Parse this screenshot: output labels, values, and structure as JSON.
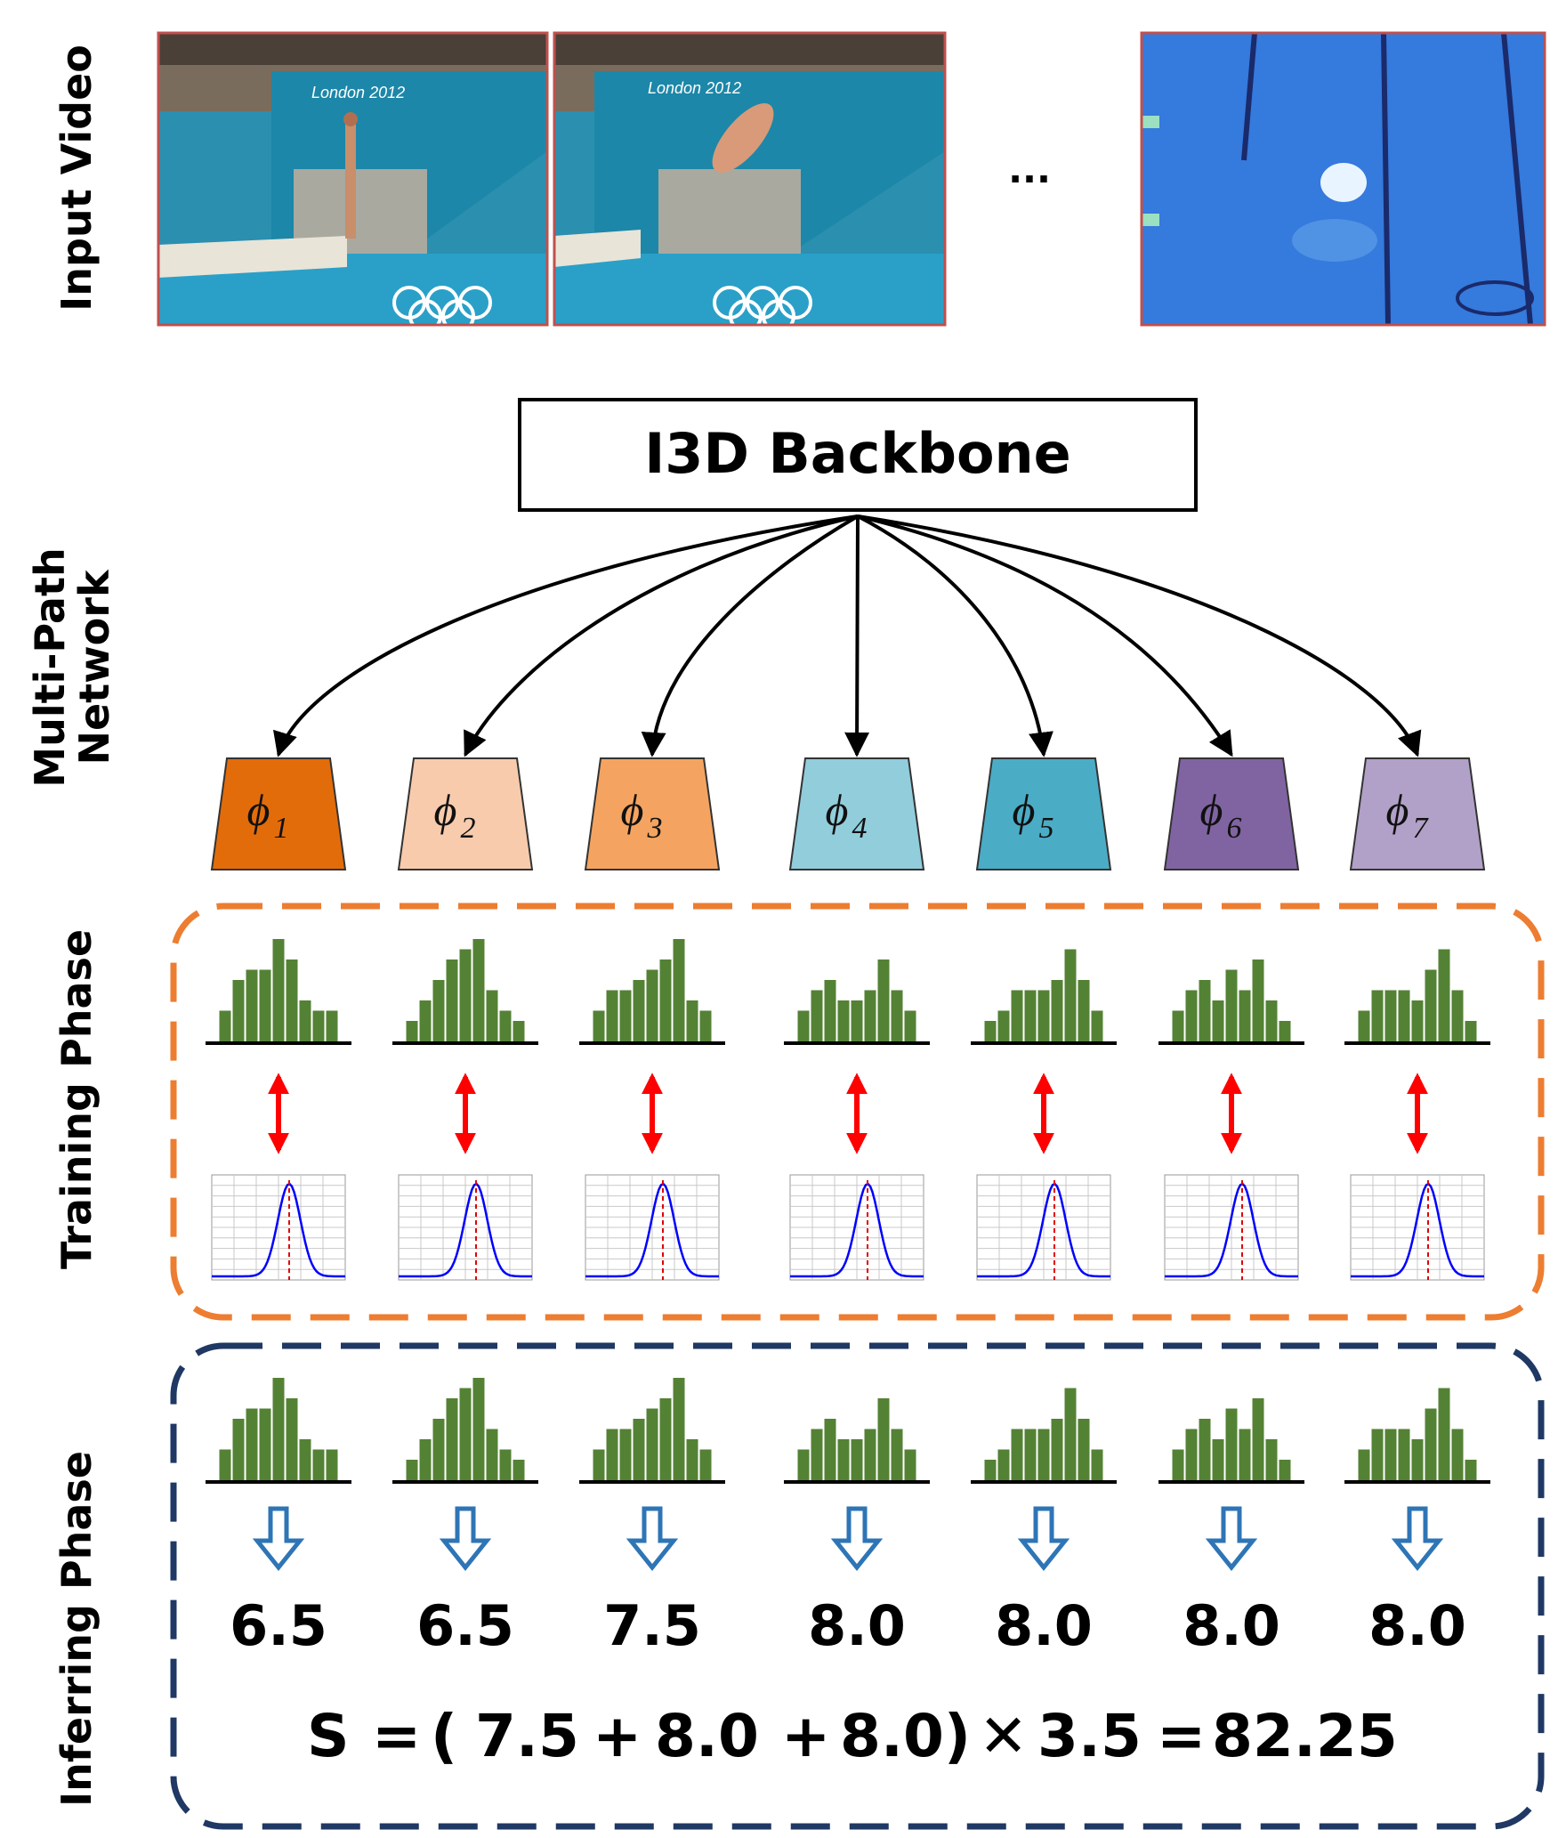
{
  "row_labels": {
    "input_video": "Input Video",
    "multi_path_line1": "Multi-Path",
    "multi_path_line2": "Network",
    "training": "Training Phase",
    "inferring": "Inferring Phase"
  },
  "backbone": {
    "label": "I3D Backbone"
  },
  "ellipsis": "...",
  "frames": [
    {
      "name": "diving-frame-platform",
      "scene": "Athlete standing on diving platform, London 2012 banner"
    },
    {
      "name": "diving-frame-midair",
      "scene": "Athlete in mid-air dive, London 2012 banner"
    },
    {
      "name": "diving-frame-splash",
      "scene": "Splash entering blue pool water"
    }
  ],
  "colors": {
    "frame_border": "#c0504d",
    "histogram_bar": "#548235",
    "red_arrow": "#ff0000",
    "blue_arrow": "#2e75b6",
    "gaussian_curve": "#0000ff",
    "training_border": "#ed7d31",
    "inferring_border": "#1f3864"
  },
  "paths": [
    {
      "symbol": "ϕ",
      "sub": "1",
      "color": "#e36c0a",
      "hist": [
        3,
        6,
        7,
        7,
        10,
        8,
        4,
        3,
        3
      ],
      "score": "6.5"
    },
    {
      "symbol": "ϕ",
      "sub": "2",
      "color": "#f8cbad",
      "hist": [
        2,
        4,
        6,
        8,
        9,
        10,
        5,
        3,
        2
      ],
      "score": "6.5"
    },
    {
      "symbol": "ϕ",
      "sub": "3",
      "color": "#f4a460",
      "hist": [
        3,
        5,
        5,
        6,
        7,
        8,
        10,
        4,
        3
      ],
      "score": "7.5"
    },
    {
      "symbol": "ϕ",
      "sub": "4",
      "color": "#92cddc",
      "hist": [
        3,
        5,
        6,
        4,
        4,
        5,
        8,
        5,
        3
      ],
      "score": "8.0"
    },
    {
      "symbol": "ϕ",
      "sub": "5",
      "color": "#4bacc6",
      "hist": [
        2,
        3,
        5,
        5,
        5,
        6,
        9,
        6,
        3
      ],
      "score": "8.0"
    },
    {
      "symbol": "ϕ",
      "sub": "6",
      "color": "#8064a2",
      "hist": [
        3,
        5,
        6,
        4,
        7,
        5,
        8,
        4,
        2
      ],
      "score": "8.0"
    },
    {
      "symbol": "ϕ",
      "sub": "7",
      "color": "#b1a0c7",
      "hist": [
        3,
        5,
        5,
        5,
        4,
        7,
        9,
        5,
        2
      ],
      "score": "8.0"
    }
  ],
  "formula": {
    "lhs": "S",
    "eq1": "=",
    "open": "(",
    "t1": "7.5",
    "plus1": "+",
    "t2": "8.0",
    "plus2": "+",
    "t3": "8.0)",
    "times": "✕",
    "factor": "3.5",
    "eq2": "=",
    "result": "82.25"
  }
}
